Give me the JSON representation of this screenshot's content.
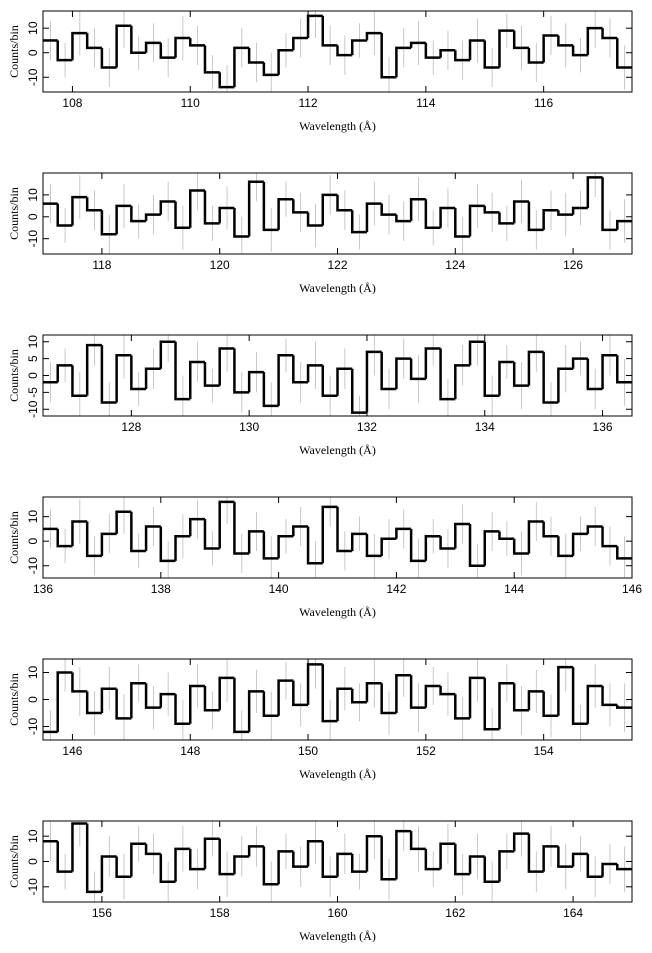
{
  "chart_data": [
    {
      "type": "histogram",
      "xlabel": "Wavelength (Å)",
      "ylabel": "Counts/bin",
      "color": "#000000",
      "error_color": "#bbbbbb",
      "xlim": [
        107.5,
        117.5
      ],
      "ylim": [
        -16,
        17
      ],
      "xticks": [
        108,
        110,
        112,
        114,
        116
      ],
      "yticks": [
        -10,
        0,
        10
      ],
      "bins": [
        107.5,
        107.75,
        108,
        108.25,
        108.5,
        108.75,
        109,
        109.25,
        109.5,
        109.75,
        110,
        110.25,
        110.5,
        110.75,
        111,
        111.25,
        111.5,
        111.75,
        112,
        112.25,
        112.5,
        112.75,
        113,
        113.25,
        113.5,
        113.75,
        114,
        114.25,
        114.5,
        114.75,
        115,
        115.25,
        115.5,
        115.75,
        116,
        116.25,
        116.5,
        116.75,
        117,
        117.25,
        117.5
      ],
      "values": [
        5,
        -3,
        8,
        2,
        -6,
        11,
        0,
        4,
        -2,
        6,
        3,
        -8,
        -14,
        2,
        -4,
        -9,
        1,
        6,
        15,
        3,
        -1,
        5,
        8,
        -10,
        2,
        4,
        -2,
        1,
        -3,
        5,
        -6,
        9,
        2,
        -4,
        7,
        3,
        -1,
        10,
        6,
        -6
      ],
      "errors": [
        8,
        7,
        9,
        8,
        8,
        9,
        7,
        8,
        8,
        9,
        8,
        7,
        9,
        8,
        8,
        9,
        7,
        8,
        9,
        8,
        8,
        7,
        9,
        8,
        8,
        9,
        7,
        8,
        8,
        9,
        8,
        7,
        9,
        8,
        8,
        9,
        7,
        8,
        8,
        9
      ]
    },
    {
      "type": "histogram",
      "xlabel": "Wavelength (Å)",
      "ylabel": "Counts/bin",
      "color": "#000000",
      "error_color": "#bbbbbb",
      "xlim": [
        117,
        127
      ],
      "ylim": [
        -17,
        20
      ],
      "xticks": [
        118,
        120,
        122,
        124,
        126
      ],
      "yticks": [
        -10,
        0,
        10
      ],
      "bins": [
        117,
        117.25,
        117.5,
        117.75,
        118,
        118.25,
        118.5,
        118.75,
        119,
        119.25,
        119.5,
        119.75,
        120,
        120.25,
        120.5,
        120.75,
        121,
        121.25,
        121.5,
        121.75,
        122,
        122.25,
        122.5,
        122.75,
        123,
        123.25,
        123.5,
        123.75,
        124,
        124.25,
        124.5,
        124.75,
        125,
        125.25,
        125.5,
        125.75,
        126,
        126.25,
        126.5,
        126.75,
        127
      ],
      "values": [
        6,
        -4,
        9,
        3,
        -8,
        5,
        -2,
        1,
        7,
        -5,
        12,
        -3,
        4,
        -9,
        16,
        -6,
        8,
        2,
        -4,
        10,
        3,
        -7,
        6,
        1,
        -2,
        8,
        -5,
        4,
        -9,
        5,
        2,
        -3,
        7,
        -6,
        3,
        1,
        4,
        18,
        -6,
        -2
      ],
      "errors": [
        9,
        8,
        10,
        9,
        9,
        10,
        8,
        9,
        9,
        10,
        9,
        8,
        10,
        9,
        9,
        10,
        8,
        9,
        10,
        9,
        9,
        8,
        10,
        9,
        9,
        10,
        8,
        9,
        9,
        10,
        9,
        8,
        10,
        9,
        9,
        10,
        8,
        9,
        9,
        10
      ]
    },
    {
      "type": "histogram",
      "xlabel": "Wavelength (Å)",
      "ylabel": "Counts/bin",
      "color": "#000000",
      "error_color": "#bbbbbb",
      "xlim": [
        126.5,
        136.5
      ],
      "ylim": [
        -12,
        12
      ],
      "xticks": [
        128,
        130,
        132,
        134,
        136
      ],
      "yticks": [
        -10,
        -5,
        0,
        5,
        10
      ],
      "bins": [
        126.5,
        126.75,
        127,
        127.25,
        127.5,
        127.75,
        128,
        128.25,
        128.5,
        128.75,
        129,
        129.25,
        129.5,
        129.75,
        130,
        130.25,
        130.5,
        130.75,
        131,
        131.25,
        131.5,
        131.75,
        132,
        132.25,
        132.5,
        132.75,
        133,
        133.25,
        133.5,
        133.75,
        134,
        134.25,
        134.5,
        134.75,
        135,
        135.25,
        135.5,
        135.75,
        136,
        136.25,
        136.5
      ],
      "values": [
        -2,
        3,
        -6,
        9,
        -8,
        6,
        -4,
        2,
        10,
        -7,
        4,
        -3,
        8,
        -5,
        1,
        -9,
        6,
        -2,
        3,
        -6,
        2,
        -11,
        7,
        -4,
        5,
        -1,
        8,
        -7,
        3,
        10,
        -6,
        4,
        -3,
        7,
        -8,
        2,
        5,
        -4,
        6,
        -2
      ],
      "errors": [
        6,
        5,
        7,
        6,
        6,
        7,
        5,
        6,
        6,
        7,
        6,
        5,
        7,
        6,
        6,
        7,
        5,
        6,
        7,
        6,
        6,
        5,
        7,
        6,
        6,
        7,
        5,
        6,
        6,
        7,
        6,
        5,
        7,
        6,
        6,
        7,
        5,
        6,
        6,
        7
      ]
    },
    {
      "type": "histogram",
      "xlabel": "Wavelength (Å)",
      "ylabel": "Counts/bin",
      "color": "#000000",
      "error_color": "#bbbbbb",
      "xlim": [
        136,
        146
      ],
      "ylim": [
        -15,
        18
      ],
      "xticks": [
        136,
        138,
        140,
        142,
        144,
        146
      ],
      "yticks": [
        -10,
        0,
        10
      ],
      "bins": [
        136,
        136.25,
        136.5,
        136.75,
        137,
        137.25,
        137.5,
        137.75,
        138,
        138.25,
        138.5,
        138.75,
        139,
        139.25,
        139.5,
        139.75,
        140,
        140.25,
        140.5,
        140.75,
        141,
        141.25,
        141.5,
        141.75,
        142,
        142.25,
        142.5,
        142.75,
        143,
        143.25,
        143.5,
        143.75,
        144,
        144.25,
        144.5,
        144.75,
        145,
        145.25,
        145.5,
        145.75,
        146
      ],
      "values": [
        5,
        -2,
        8,
        -6,
        3,
        12,
        -4,
        6,
        -8,
        2,
        9,
        -3,
        16,
        -5,
        4,
        -7,
        2,
        6,
        -9,
        14,
        -4,
        3,
        -6,
        1,
        5,
        -8,
        2,
        -3,
        7,
        -10,
        4,
        1,
        -5,
        8,
        2,
        -6,
        3,
        6,
        -2,
        -7
      ],
      "errors": [
        8,
        7,
        9,
        8,
        8,
        9,
        7,
        8,
        8,
        9,
        8,
        7,
        9,
        8,
        8,
        9,
        7,
        8,
        9,
        8,
        8,
        7,
        9,
        8,
        8,
        9,
        7,
        8,
        8,
        9,
        8,
        7,
        9,
        8,
        8,
        9,
        7,
        8,
        8,
        9
      ]
    },
    {
      "type": "histogram",
      "xlabel": "Wavelength (Å)",
      "ylabel": "Counts/bin",
      "color": "#000000",
      "error_color": "#bbbbbb",
      "xlim": [
        145.5,
        155.5
      ],
      "ylim": [
        -15,
        15
      ],
      "xticks": [
        146,
        148,
        150,
        152,
        154
      ],
      "yticks": [
        -10,
        0,
        10
      ],
      "bins": [
        145.5,
        145.75,
        146,
        146.25,
        146.5,
        146.75,
        147,
        147.25,
        147.5,
        147.75,
        148,
        148.25,
        148.5,
        148.75,
        149,
        149.25,
        149.5,
        149.75,
        150,
        150.25,
        150.5,
        150.75,
        151,
        151.25,
        151.5,
        151.75,
        152,
        152.25,
        152.5,
        152.75,
        153,
        153.25,
        153.5,
        153.75,
        154,
        154.25,
        154.5,
        154.75,
        155,
        155.25,
        155.5
      ],
      "values": [
        -12,
        10,
        3,
        -5,
        4,
        -7,
        6,
        -3,
        2,
        -9,
        5,
        -4,
        8,
        -12,
        3,
        -6,
        7,
        -2,
        13,
        -8,
        4,
        -1,
        6,
        -5,
        9,
        -3,
        5,
        2,
        -7,
        8,
        -11,
        6,
        -4,
        3,
        -6,
        12,
        -9,
        5,
        -2,
        -3
      ],
      "errors": [
        8,
        7,
        9,
        8,
        8,
        9,
        7,
        8,
        8,
        9,
        8,
        7,
        9,
        8,
        8,
        9,
        7,
        8,
        9,
        8,
        8,
        7,
        9,
        8,
        8,
        9,
        7,
        8,
        8,
        9,
        8,
        7,
        9,
        8,
        8,
        9,
        7,
        8,
        8,
        9
      ]
    },
    {
      "type": "histogram",
      "xlabel": "Wavelength (Å)",
      "ylabel": "Counts/bin",
      "color": "#000000",
      "error_color": "#bbbbbb",
      "xlim": [
        155,
        165
      ],
      "ylim": [
        -16,
        16
      ],
      "xticks": [
        156,
        158,
        160,
        162,
        164
      ],
      "yticks": [
        -10,
        0,
        10
      ],
      "bins": [
        155,
        155.25,
        155.5,
        155.75,
        156,
        156.25,
        156.5,
        156.75,
        157,
        157.25,
        157.5,
        157.75,
        158,
        158.25,
        158.5,
        158.75,
        159,
        159.25,
        159.5,
        159.75,
        160,
        160.25,
        160.5,
        160.75,
        161,
        161.25,
        161.5,
        161.75,
        162,
        162.25,
        162.5,
        162.75,
        163,
        163.25,
        163.5,
        163.75,
        164,
        164.25,
        164.5,
        164.75,
        165
      ],
      "values": [
        8,
        -4,
        15,
        -12,
        2,
        -6,
        7,
        3,
        -8,
        5,
        -3,
        9,
        -5,
        2,
        6,
        -9,
        4,
        -2,
        8,
        -6,
        3,
        -4,
        10,
        -7,
        12,
        5,
        -3,
        7,
        -5,
        2,
        -8,
        4,
        11,
        -4,
        6,
        -2,
        3,
        -6,
        -1,
        -3
      ],
      "errors": [
        8,
        7,
        9,
        8,
        8,
        9,
        7,
        8,
        8,
        9,
        8,
        7,
        9,
        8,
        8,
        9,
        7,
        8,
        9,
        8,
        8,
        7,
        9,
        8,
        8,
        9,
        7,
        8,
        8,
        9,
        8,
        7,
        9,
        8,
        8,
        9,
        7,
        8,
        8,
        9
      ]
    }
  ]
}
